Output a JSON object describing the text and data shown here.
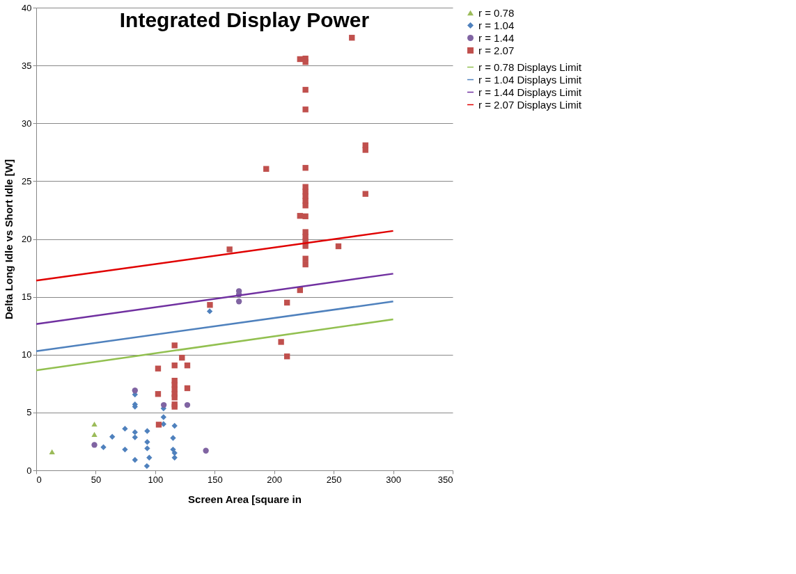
{
  "chart_data": {
    "type": "scatter",
    "title": "Integrated Display Power",
    "xlabel": "Screen Area [square in",
    "ylabel": "Delta Long Idle vs Short Idle [W]",
    "xlim": [
      0,
      350
    ],
    "xticks": [
      0,
      50,
      100,
      150,
      200,
      250,
      300,
      350
    ],
    "ylim": [
      0,
      40
    ],
    "yticks": [
      0,
      5,
      10,
      15,
      20,
      25,
      30,
      35,
      40
    ],
    "grid": "y",
    "legend": "right",
    "series": [
      {
        "name": "r = 0.78",
        "color": "#9bbb59",
        "marker": "triangle",
        "x": [
          13.3,
          48.9,
          48.9
        ],
        "values": [
          1.6,
          4.0,
          3.1
        ]
      },
      {
        "name": "r = 1.04",
        "color": "#4f81bd",
        "marker": "diamond",
        "x": [
          56.5,
          63.9,
          74.6,
          74.6,
          83,
          83,
          83,
          83,
          83,
          83,
          93.3,
          93.3,
          93.3,
          93,
          95,
          107,
          107,
          107,
          116.3,
          115,
          115,
          116.3,
          116.3,
          145.8
        ],
        "values": [
          2.0,
          2.9,
          3.6,
          1.8,
          6.55,
          5.7,
          5.5,
          3.3,
          2.85,
          0.9,
          3.4,
          2.45,
          1.9,
          0.37,
          1.1,
          5.35,
          4.6,
          4.0,
          3.85,
          2.8,
          1.8,
          1.5,
          1.1,
          13.75
        ]
      },
      {
        "name": "r = 1.44",
        "color": "#8064a2",
        "marker": "circle",
        "x": [
          48.9,
          83,
          107.2,
          127,
          142.6,
          170.4,
          170.4,
          170.4
        ],
        "values": [
          2.2,
          6.9,
          5.65,
          5.65,
          1.7,
          15.5,
          15.2,
          14.6
        ]
      },
      {
        "name": "r = 2.07",
        "color": "#c0504d",
        "marker": "square",
        "x": [
          102.4,
          102.4,
          103,
          116.3,
          122.5,
          127,
          127,
          116.3,
          116.3,
          116.3,
          116.3,
          116.3,
          116.3,
          116.3,
          116.3,
          146,
          162.5,
          193.3,
          265.3,
          226.3,
          226.3,
          226.3,
          226.3,
          226.3,
          226.3,
          226.3,
          226.3,
          226.3,
          226.3,
          226.3,
          226.3,
          226.3,
          226.3,
          226.3,
          226.3,
          226.3,
          221.7,
          221.7,
          221.7,
          276.7,
          276.7,
          276.7,
          254,
          205.8,
          210.8,
          210.8
        ],
        "values": [
          8.8,
          6.6,
          3.95,
          9.07,
          9.74,
          9.07,
          7.1,
          10.8,
          7.75,
          7.4,
          7.0,
          6.6,
          6.3,
          5.7,
          5.5,
          14.3,
          19.1,
          26.06,
          37.4,
          35.6,
          35.3,
          32.9,
          31.2,
          26.15,
          24.5,
          24.1,
          23.7,
          23.3,
          22.9,
          21.96,
          20.6,
          20.2,
          19.8,
          19.4,
          18.3,
          17.8,
          35.55,
          22.0,
          15.58,
          28.1,
          27.7,
          23.9,
          19.37,
          11.1,
          9.85,
          14.5
        ]
      },
      {
        "name": "r = 0.78 Displays Limit",
        "type": "line",
        "color": "#92c050",
        "x": [
          0,
          300
        ],
        "values": [
          8.65,
          13.05
        ]
      },
      {
        "name": "r = 1.04 Displays Limit",
        "type": "line",
        "color": "#4f81bd",
        "x": [
          0,
          300
        ],
        "values": [
          10.3,
          14.6
        ]
      },
      {
        "name": "r = 1.44 Displays Limit",
        "type": "line",
        "color": "#7030a0",
        "x": [
          0,
          300
        ],
        "values": [
          12.65,
          17.0
        ]
      },
      {
        "name": "r = 2.07 Displays Limit",
        "type": "line",
        "color": "#e00000",
        "x": [
          0,
          300
        ],
        "values": [
          16.4,
          20.7
        ]
      }
    ]
  }
}
